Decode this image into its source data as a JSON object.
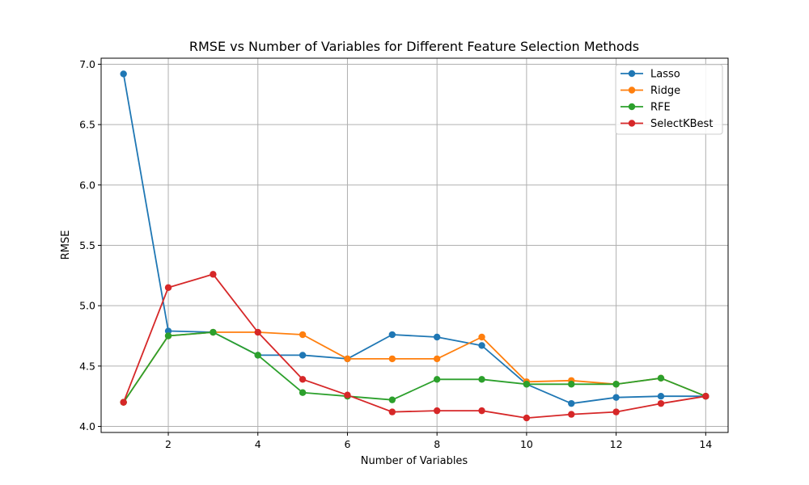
{
  "chart_data": {
    "type": "line",
    "title": "RMSE vs Number of Variables for Different Feature Selection Methods",
    "xlabel": "Number of Variables",
    "ylabel": "RMSE",
    "xlim": [
      0.5,
      14.5
    ],
    "ylim": [
      3.95,
      7.05
    ],
    "xticks": [
      2,
      4,
      6,
      8,
      10,
      12,
      14
    ],
    "yticks": [
      4.0,
      4.5,
      5.0,
      5.5,
      6.0,
      6.5,
      7.0
    ],
    "grid": true,
    "legend_position": "top-right",
    "x": [
      1,
      2,
      3,
      4,
      5,
      6,
      7,
      8,
      9,
      10,
      11,
      12,
      13,
      14
    ],
    "series": [
      {
        "name": "Lasso",
        "color": "#1f77b4",
        "values": [
          6.92,
          4.79,
          4.78,
          4.59,
          4.59,
          4.56,
          4.76,
          4.74,
          4.67,
          4.35,
          4.19,
          4.24,
          4.25,
          4.25
        ]
      },
      {
        "name": "Ridge",
        "color": "#ff7f0e",
        "values": [
          4.2,
          4.75,
          4.78,
          4.78,
          4.76,
          4.56,
          4.56,
          4.56,
          4.74,
          4.37,
          4.38,
          4.35,
          4.4,
          4.25
        ]
      },
      {
        "name": "RFE",
        "color": "#2ca02c",
        "values": [
          4.2,
          4.75,
          4.78,
          4.59,
          4.28,
          4.25,
          4.22,
          4.39,
          4.39,
          4.35,
          4.35,
          4.35,
          4.4,
          4.25
        ]
      },
      {
        "name": "SelectKBest",
        "color": "#d62728",
        "values": [
          4.2,
          5.15,
          5.26,
          4.78,
          4.39,
          4.26,
          4.12,
          4.13,
          4.13,
          4.07,
          4.1,
          4.12,
          4.19,
          4.25
        ]
      }
    ]
  }
}
